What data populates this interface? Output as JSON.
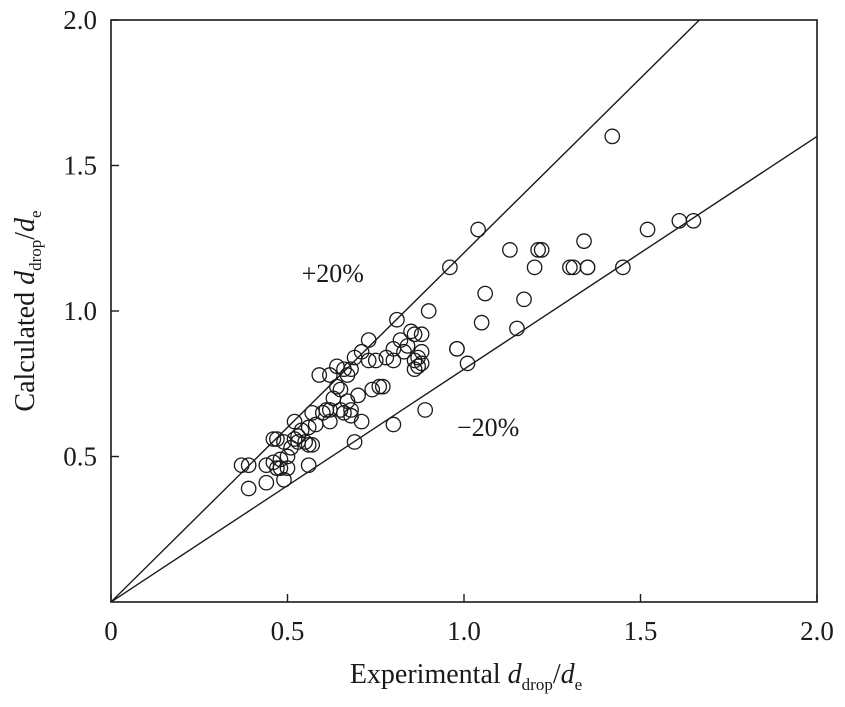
{
  "chart_data": {
    "type": "scatter",
    "title": "",
    "xlabel": {
      "main": "Experimental ",
      "var1": "d",
      "sub1": "drop",
      "slash": "/",
      "var2": "d",
      "sub2": "e"
    },
    "ylabel": {
      "main": "Calculated ",
      "var1": "d",
      "sub1": "drop",
      "slash": "/",
      "var2": "d",
      "sub2": "e"
    },
    "xlim": [
      0,
      2.0
    ],
    "ylim": [
      0,
      2.0
    ],
    "x_ticks": [
      0,
      0.5,
      1.0,
      1.5,
      2.0
    ],
    "x_tick_labels": [
      "0",
      "0.5",
      "1.0",
      "1.5",
      "2.0"
    ],
    "y_ticks": [
      0.5,
      1.0,
      1.5,
      2.0
    ],
    "y_tick_labels": [
      "0.5",
      "1.0",
      "1.5",
      "2.0"
    ],
    "grid": false,
    "reference_lines": [
      {
        "name": "plus-20-line",
        "slope": 1.2,
        "label": "+20%",
        "label_at": [
          0.54,
          1.1
        ]
      },
      {
        "name": "minus-20-line",
        "slope": 0.8,
        "label": "−20%",
        "label_at": [
          0.98,
          0.57
        ]
      }
    ],
    "marker": "open-circle",
    "points": [
      [
        0.37,
        0.47
      ],
      [
        0.39,
        0.47
      ],
      [
        0.39,
        0.39
      ],
      [
        0.44,
        0.41
      ],
      [
        0.44,
        0.47
      ],
      [
        0.46,
        0.48
      ],
      [
        0.46,
        0.56
      ],
      [
        0.47,
        0.56
      ],
      [
        0.47,
        0.46
      ],
      [
        0.48,
        0.49
      ],
      [
        0.48,
        0.46
      ],
      [
        0.49,
        0.42
      ],
      [
        0.49,
        0.55
      ],
      [
        0.5,
        0.5
      ],
      [
        0.5,
        0.46
      ],
      [
        0.51,
        0.53
      ],
      [
        0.52,
        0.56
      ],
      [
        0.52,
        0.62
      ],
      [
        0.53,
        0.57
      ],
      [
        0.53,
        0.55
      ],
      [
        0.54,
        0.59
      ],
      [
        0.55,
        0.55
      ],
      [
        0.56,
        0.47
      ],
      [
        0.56,
        0.54
      ],
      [
        0.56,
        0.6
      ],
      [
        0.57,
        0.54
      ],
      [
        0.57,
        0.65
      ],
      [
        0.58,
        0.61
      ],
      [
        0.59,
        0.78
      ],
      [
        0.6,
        0.65
      ],
      [
        0.61,
        0.66
      ],
      [
        0.62,
        0.62
      ],
      [
        0.62,
        0.66
      ],
      [
        0.62,
        0.78
      ],
      [
        0.63,
        0.7
      ],
      [
        0.64,
        0.74
      ],
      [
        0.64,
        0.81
      ],
      [
        0.65,
        0.73
      ],
      [
        0.65,
        0.66
      ],
      [
        0.66,
        0.8
      ],
      [
        0.66,
        0.65
      ],
      [
        0.67,
        0.69
      ],
      [
        0.67,
        0.78
      ],
      [
        0.68,
        0.64
      ],
      [
        0.68,
        0.66
      ],
      [
        0.68,
        0.8
      ],
      [
        0.69,
        0.55
      ],
      [
        0.69,
        0.84
      ],
      [
        0.7,
        0.71
      ],
      [
        0.71,
        0.62
      ],
      [
        0.71,
        0.86
      ],
      [
        0.73,
        0.9
      ],
      [
        0.73,
        0.83
      ],
      [
        0.74,
        0.73
      ],
      [
        0.75,
        0.83
      ],
      [
        0.76,
        0.74
      ],
      [
        0.77,
        0.74
      ],
      [
        0.78,
        0.84
      ],
      [
        0.8,
        0.61
      ],
      [
        0.8,
        0.83
      ],
      [
        0.8,
        0.87
      ],
      [
        0.81,
        0.97
      ],
      [
        0.82,
        0.9
      ],
      [
        0.83,
        0.86
      ],
      [
        0.84,
        0.88
      ],
      [
        0.85,
        0.93
      ],
      [
        0.86,
        0.83
      ],
      [
        0.86,
        0.8
      ],
      [
        0.86,
        0.92
      ],
      [
        0.87,
        0.84
      ],
      [
        0.87,
        0.81
      ],
      [
        0.88,
        0.86
      ],
      [
        0.88,
        0.82
      ],
      [
        0.88,
        0.92
      ],
      [
        0.89,
        0.66
      ],
      [
        0.9,
        1.0
      ],
      [
        0.96,
        1.15
      ],
      [
        0.98,
        0.87
      ],
      [
        0.98,
        0.87
      ],
      [
        1.01,
        0.82
      ],
      [
        1.04,
        1.28
      ],
      [
        1.05,
        0.96
      ],
      [
        1.06,
        1.06
      ],
      [
        1.15,
        0.94
      ],
      [
        1.17,
        1.04
      ],
      [
        1.2,
        1.15
      ],
      [
        1.21,
        1.21
      ],
      [
        1.13,
        1.21
      ],
      [
        1.22,
        1.21
      ],
      [
        1.3,
        1.15
      ],
      [
        1.31,
        1.15
      ],
      [
        1.34,
        1.24
      ],
      [
        1.35,
        1.15
      ],
      [
        1.35,
        1.15
      ],
      [
        1.42,
        1.6
      ],
      [
        1.45,
        1.15
      ],
      [
        1.52,
        1.28
      ],
      [
        1.61,
        1.31
      ],
      [
        1.65,
        1.31
      ]
    ]
  }
}
